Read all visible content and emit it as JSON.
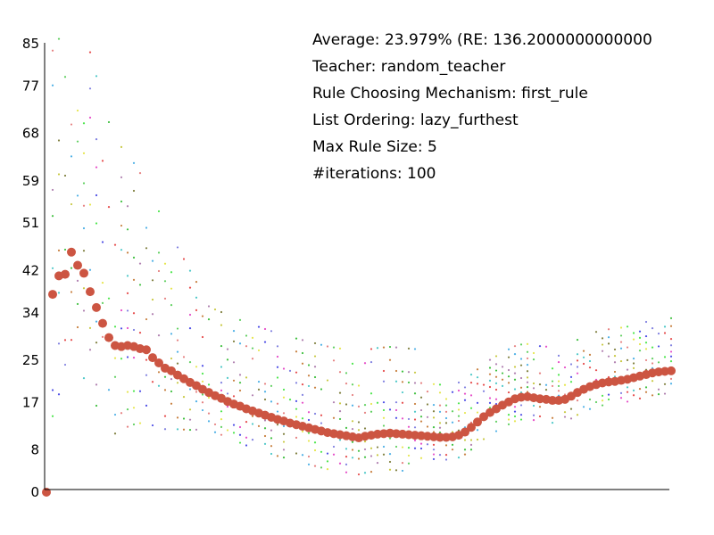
{
  "info": {
    "average": "Average: 23.979% (RE: 136.2000000000000",
    "teacher": "Teacher: random_teacher",
    "rule_mechanism": "Rule Choosing Mechanism: first_rule",
    "list_ordering": "List Ordering: lazy_furthest",
    "max_rule_size": "Max Rule Size: 5",
    "iterations": "#iterations: 100"
  },
  "colors": {
    "main_series": "#cc5542",
    "axis": "#000000",
    "scatter_palette": [
      "#e6e64d",
      "#4de64d",
      "#4d4de6",
      "#e64dc8",
      "#8080e0",
      "#e64d4d",
      "#4dc8c8",
      "#c88040",
      "#40c040",
      "#b080b0",
      "#c8c840",
      "#808040",
      "#4db0e6",
      "#e68080",
      "#60d060"
    ]
  },
  "chart_data": {
    "type": "scatter",
    "title": "",
    "xlabel": "",
    "ylabel": "",
    "xlim": [
      0,
      100
    ],
    "ylim": [
      0,
      85
    ],
    "y_ticks": [
      "0",
      "8",
      "17",
      "25",
      "34",
      "42",
      "51",
      "59",
      "68",
      "77",
      "85"
    ],
    "grid": false,
    "series": [
      {
        "x": [
          0,
          1,
          2,
          3,
          4,
          5,
          6,
          7,
          8,
          9,
          10,
          11,
          12,
          13,
          14,
          15,
          16,
          17,
          18,
          19,
          20,
          21,
          22,
          23,
          24,
          25,
          26,
          27,
          28,
          29,
          30,
          31,
          32,
          33,
          34,
          35,
          36,
          37,
          38,
          39,
          40,
          41,
          42,
          43,
          44,
          45,
          46,
          47,
          48,
          49,
          50,
          51,
          52,
          53,
          54,
          55,
          56,
          57,
          58,
          59,
          60,
          61,
          62,
          63,
          64,
          65,
          66,
          67,
          68,
          69,
          70,
          71,
          72,
          73,
          74,
          75,
          76,
          77,
          78,
          79,
          80,
          81,
          82,
          83,
          84,
          85,
          86,
          87,
          88,
          89,
          90,
          91,
          92,
          93,
          94,
          95,
          96,
          97,
          98,
          99,
          100
        ],
        "y": [
          0,
          37.5,
          41,
          41.3,
          45.5,
          43,
          41.5,
          38,
          35,
          32,
          29.3,
          27.8,
          27.6,
          27.8,
          27.6,
          27.2,
          27,
          25.5,
          24.5,
          23.5,
          23,
          22.2,
          21.5,
          20.8,
          20.2,
          19.5,
          18.9,
          18.3,
          17.8,
          17.2,
          16.7,
          16.3,
          15.8,
          15.4,
          15,
          14.6,
          14.2,
          13.8,
          13.5,
          13.1,
          12.8,
          12.5,
          12.2,
          11.9,
          11.6,
          11.3,
          11.1,
          10.9,
          10.7,
          10.5,
          10.3,
          10.6,
          10.8,
          11,
          11.1,
          11.2,
          11.1,
          11,
          10.9,
          10.8,
          10.7,
          10.6,
          10.5,
          10.4,
          10.4,
          10.5,
          10.8,
          11.4,
          12.3,
          13.3,
          14.3,
          15.1,
          15.8,
          16.5,
          17.1,
          17.7,
          18,
          18.1,
          17.9,
          17.7,
          17.6,
          17.4,
          17.4,
          17.6,
          18.2,
          18.9,
          19.5,
          20,
          20.4,
          20.7,
          20.9,
          21,
          21.2,
          21.4,
          21.7,
          22,
          22.3,
          22.6,
          22.8,
          22.9,
          23
        ]
      }
    ]
  }
}
